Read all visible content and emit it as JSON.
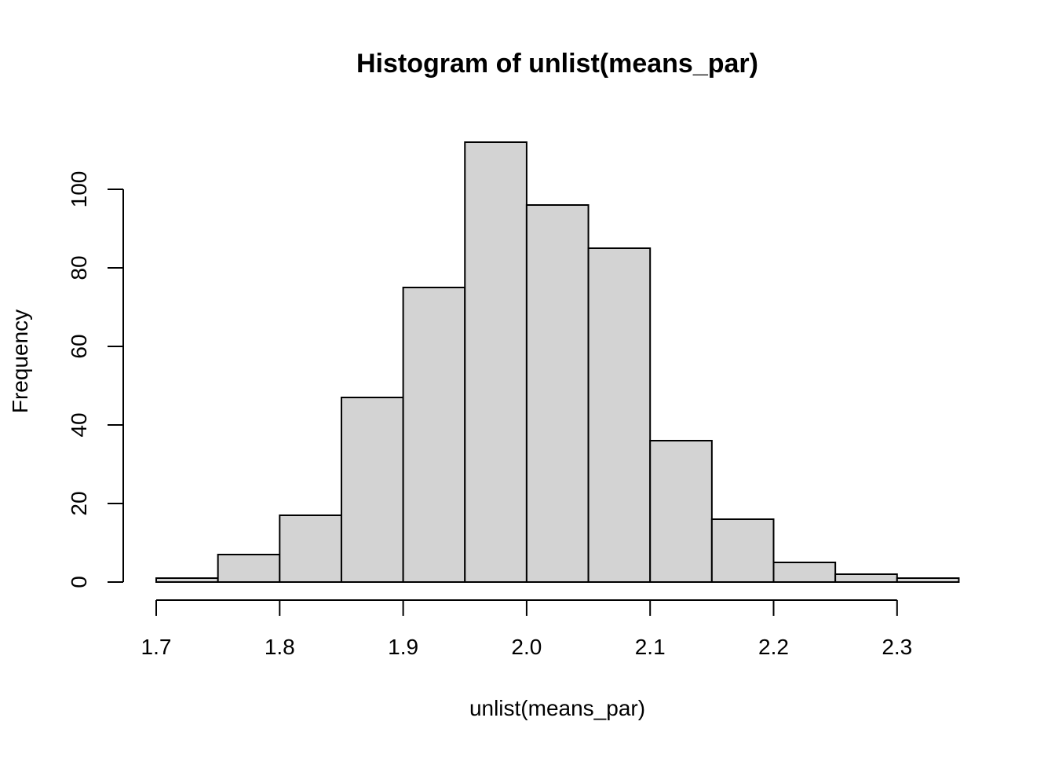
{
  "chart_data": {
    "type": "bar",
    "title": "Histogram of unlist(means_par)",
    "xlabel": "unlist(means_par)",
    "ylabel": "Frequency",
    "bins": [
      {
        "x0": 1.7,
        "x1": 1.75,
        "count": 1
      },
      {
        "x0": 1.75,
        "x1": 1.8,
        "count": 7
      },
      {
        "x0": 1.8,
        "x1": 1.85,
        "count": 17
      },
      {
        "x0": 1.85,
        "x1": 1.9,
        "count": 47
      },
      {
        "x0": 1.9,
        "x1": 1.95,
        "count": 75
      },
      {
        "x0": 1.95,
        "x1": 2.0,
        "count": 112
      },
      {
        "x0": 2.0,
        "x1": 2.05,
        "count": 96
      },
      {
        "x0": 2.05,
        "x1": 2.1,
        "count": 85
      },
      {
        "x0": 2.1,
        "x1": 2.15,
        "count": 36
      },
      {
        "x0": 2.15,
        "x1": 2.2,
        "count": 16
      },
      {
        "x0": 2.2,
        "x1": 2.25,
        "count": 5
      },
      {
        "x0": 2.25,
        "x1": 2.3,
        "count": 2
      },
      {
        "x0": 2.3,
        "x1": 2.35,
        "count": 1
      }
    ],
    "xticks": [
      "1.7",
      "1.8",
      "1.9",
      "2.0",
      "2.1",
      "2.2",
      "2.3"
    ],
    "yticks": [
      "0",
      "20",
      "40",
      "60",
      "80",
      "100"
    ],
    "xlim": [
      1.7,
      2.35
    ],
    "ylim": [
      0,
      112
    ],
    "grid": false,
    "colors": {
      "bar_fill": "#d3d3d3",
      "bar_stroke": "#000000"
    }
  }
}
